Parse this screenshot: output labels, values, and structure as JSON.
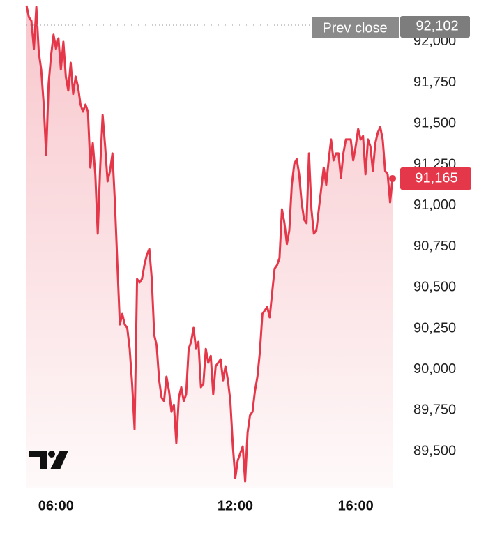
{
  "chart_data": {
    "type": "line",
    "categories": [
      null,
      null,
      null,
      null,
      null,
      null,
      null,
      null,
      null,
      null,
      null,
      null,
      "06:00",
      null,
      null,
      null,
      null,
      null,
      null,
      null,
      null,
      null,
      null,
      null,
      null,
      null,
      null,
      null,
      null,
      null,
      null,
      null,
      null,
      null,
      null,
      null,
      null,
      null,
      null,
      null,
      null,
      null,
      null,
      null,
      null,
      null,
      null,
      null,
      null,
      null,
      null,
      null,
      null,
      null,
      null,
      null,
      null,
      null,
      null,
      null,
      null,
      null,
      null,
      null,
      null,
      null,
      null,
      null,
      null,
      null,
      null,
      null,
      null,
      null,
      null,
      null,
      null,
      null,
      null,
      null,
      null,
      null,
      null,
      null,
      null,
      "12:00",
      null,
      null,
      null,
      null,
      null,
      null,
      null,
      null,
      null,
      null,
      null,
      null,
      null,
      null,
      null,
      null,
      null,
      null,
      null,
      null,
      null,
      null,
      null,
      null,
      null,
      null,
      null,
      null,
      null,
      null,
      null,
      null,
      null,
      null,
      null,
      null,
      null,
      null,
      null,
      null,
      null,
      null,
      null,
      null,
      null,
      null,
      null,
      null,
      "16:00",
      null,
      null,
      null,
      null,
      null,
      null,
      null,
      null,
      null,
      null,
      null,
      null,
      null,
      null,
      null
    ],
    "series": [
      {
        "color": "#e5374a",
        "values": [
          92221,
          92149,
          92128,
          91957,
          92213,
          91936,
          91830,
          91617,
          91310,
          91744,
          91915,
          92043,
          91957,
          92021,
          91830,
          92000,
          91787,
          91702,
          91872,
          91681,
          91787,
          91723,
          91617,
          91574,
          91617,
          91574,
          91233,
          91382,
          91191,
          90829,
          91233,
          91553,
          91361,
          91148,
          91212,
          91319,
          91020,
          90637,
          90275,
          90339,
          90275,
          90254,
          90126,
          89913,
          89636,
          90552,
          90531,
          90552,
          90637,
          90701,
          90735,
          90552,
          90211,
          90147,
          89934,
          89828,
          89807,
          89956,
          89870,
          89743,
          89785,
          89551,
          89828,
          89892,
          89807,
          89849,
          90126,
          90169,
          90254,
          90126,
          90169,
          89892,
          89913,
          90126,
          90041,
          90083,
          89849,
          90020,
          90041,
          90062,
          89934,
          90020,
          89934,
          89807,
          89530,
          89338,
          89445,
          89487,
          89530,
          89317,
          89615,
          89721,
          89743,
          89870,
          89956,
          90105,
          90339,
          90360,
          90382,
          90318,
          90467,
          90616,
          90637,
          90680,
          90978,
          90893,
          90765,
          90850,
          91127,
          91255,
          91284,
          91191,
          91020,
          90914,
          90893,
          91319,
          90978,
          90829,
          90850,
          90978,
          91106,
          91233,
          91127,
          91276,
          91404,
          91276,
          91319,
          91319,
          91169,
          91319,
          91404,
          91404,
          91404,
          91276,
          91361,
          91468,
          91404,
          91425,
          91191,
          91404,
          91361,
          91212,
          91382,
          91446,
          91480,
          91404,
          91212,
          91191,
          91020,
          91165
        ]
      }
    ],
    "ylim": [
      89275,
      92255
    ],
    "yticks": [
      {
        "value": 89500,
        "label": "89,500"
      },
      {
        "value": 89750,
        "label": "89,750"
      },
      {
        "value": 90000,
        "label": "90,000"
      },
      {
        "value": 90250,
        "label": "90,250"
      },
      {
        "value": 90500,
        "label": "90,500"
      },
      {
        "value": 90750,
        "label": "90,750"
      },
      {
        "value": 91000,
        "label": "91,000"
      },
      {
        "value": 91250,
        "label": "91,250"
      },
      {
        "value": 91500,
        "label": "91,500"
      },
      {
        "value": 91750,
        "label": "91,750"
      },
      {
        "value": 92000,
        "label": "92,000"
      }
    ],
    "grid": false,
    "reference_line": {
      "name": "Prev close",
      "value": 92102,
      "value_label": "92,102"
    },
    "current": {
      "value": 91165,
      "label": "91,165"
    }
  }
}
